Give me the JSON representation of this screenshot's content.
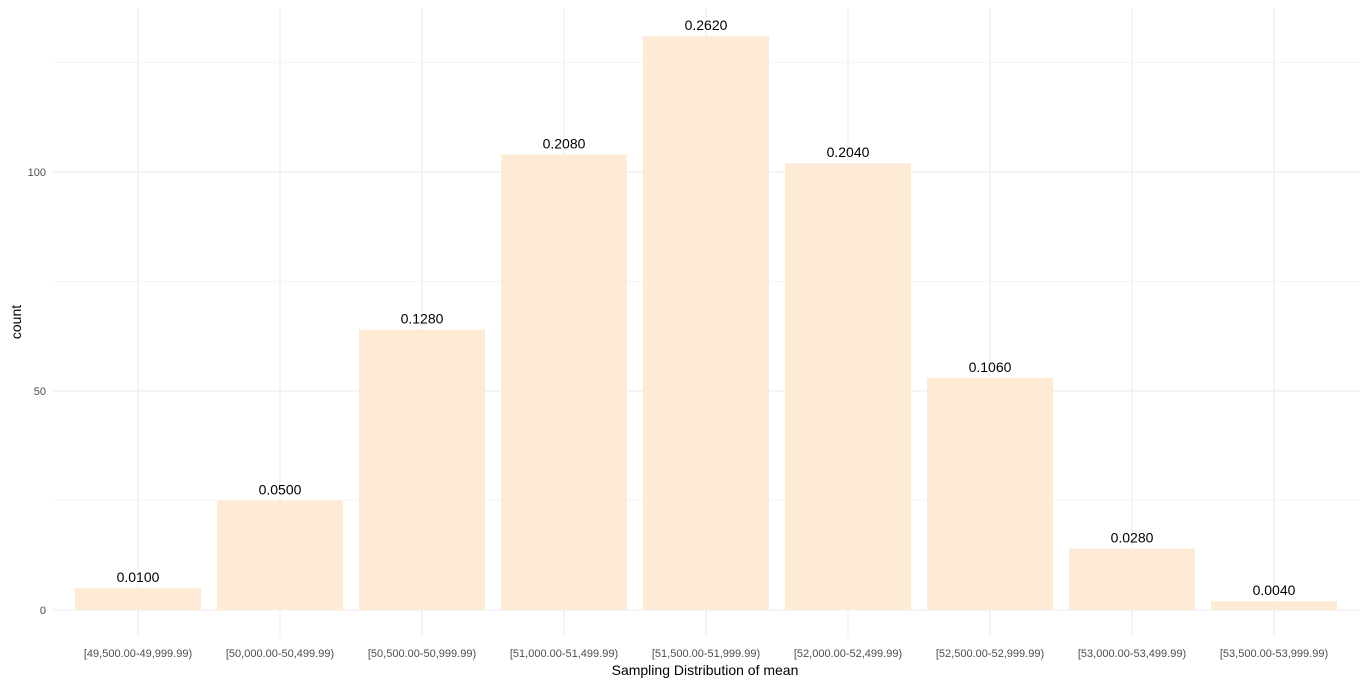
{
  "chart_data": {
    "type": "bar",
    "title": "",
    "xlabel": "Sampling Distribution of mean",
    "ylabel": "count",
    "categories": [
      "[49,500.00-49,999.99)",
      "[50,000.00-50,499.99)",
      "[50,500.00-50,999.99)",
      "[51,000.00-51,499.99)",
      "[51,500.00-51,999.99)",
      "[52,000.00-52,499.99)",
      "[52,500.00-52,999.99)",
      "[53,000.00-53,499.99)",
      "[53,500.00-53,999.99)"
    ],
    "values": [
      5,
      25,
      64,
      104,
      131,
      102,
      53,
      14,
      2
    ],
    "data_labels": [
      "0.0100",
      "0.0500",
      "0.1280",
      "0.2080",
      "0.2620",
      "0.2040",
      "0.1060",
      "0.0280",
      "0.0040"
    ],
    "ylim": [
      0,
      131
    ],
    "yticks": [
      0,
      50,
      100
    ],
    "ytick_labels": [
      "0",
      "50",
      "100"
    ],
    "grid": true,
    "legend": "none",
    "colors": {
      "bar": "#fdebd6",
      "grid": "#ebebeb",
      "background": "#ffffff"
    }
  }
}
